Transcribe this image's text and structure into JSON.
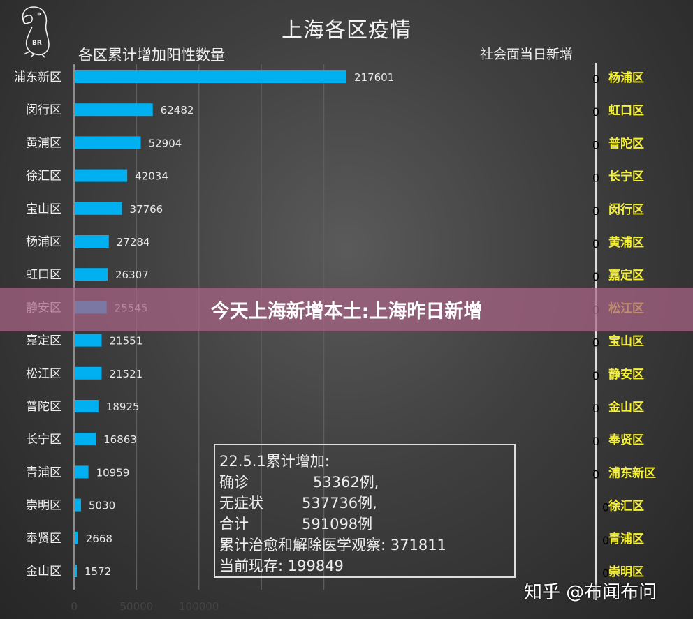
{
  "chart_data": {
    "type": "bar",
    "orientation": "horizontal",
    "title": "上海各区疫情",
    "subtitle_left": "各区累计增加阳性数量",
    "subtitle_right": "社会面当日新增",
    "categories": [
      "浦东新区",
      "闵行区",
      "黄浦区",
      "徐汇区",
      "宝山区",
      "杨浦区",
      "虹口区",
      "静安区",
      "嘉定区",
      "松江区",
      "普陀区",
      "长宁区",
      "青浦区",
      "崇明区",
      "奉贤区",
      "金山区"
    ],
    "values": [
      217601,
      62482,
      52904,
      42034,
      37766,
      27284,
      26307,
      25545,
      21551,
      21521,
      18925,
      16863,
      10959,
      5030,
      2668,
      1572
    ],
    "xticks": [
      "0",
      "50000",
      "100000"
    ],
    "xlim": [
      0,
      250000
    ],
    "grid": true,
    "bar_color": "#00b0f0",
    "right_series": {
      "categories": [
        "杨浦区",
        "虹口区",
        "普陀区",
        "长宁区",
        "闵行区",
        "黄浦区",
        "嘉定区",
        "松江区",
        "宝山区",
        "静安区",
        "金山区",
        "奉贤区",
        "浦东新区",
        "徐汇区",
        "青浦区",
        "崇明区"
      ],
      "values": [
        0,
        0,
        0,
        0,
        0,
        0,
        0,
        0,
        0,
        0,
        0,
        0,
        0,
        0,
        0,
        0
      ],
      "label_color": "#f5f032"
    }
  },
  "banner": "今天上海新增本土:上海昨日新增",
  "summary": {
    "heading": "22.5.1累计增加:",
    "rows": [
      [
        "确诊",
        "53362例,"
      ],
      [
        "无症状",
        "537736例,"
      ],
      [
        "合计",
        "591098例"
      ]
    ],
    "recovered": "累计治愈和解除医学观察: 371811",
    "current": "当前现存: 199849"
  },
  "logo_text": "BR",
  "watermark": "知乎 @布闻布问"
}
